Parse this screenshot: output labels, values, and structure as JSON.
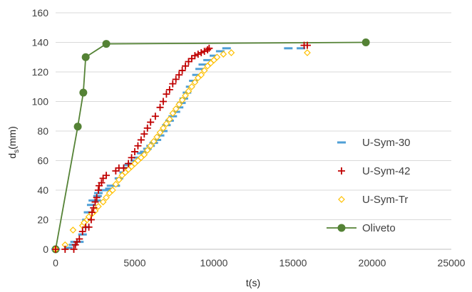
{
  "chart_data": {
    "type": "scatter",
    "xlabel": "t(s)",
    "ylabel_main": "d",
    "ylabel_sub": "s",
    "ylabel_unit": "(mm)",
    "xlim": [
      0,
      25000
    ],
    "ylim": [
      0,
      160
    ],
    "x_ticks": [
      0,
      5000,
      10000,
      15000,
      20000,
      25000
    ],
    "y_ticks": [
      0,
      20,
      40,
      60,
      80,
      100,
      120,
      140,
      160
    ],
    "grid": "horizontal",
    "legend_position": "right",
    "colors": {
      "usym30": "#4f9fd6",
      "usym42": "#c00000",
      "usymtr": "#ffc000",
      "oliveto": "#548235",
      "grid": "#d9d9d9",
      "axis": "#bfbfbf"
    },
    "series": [
      {
        "name": "U-Sym-30",
        "marker": "dash",
        "points": [
          [
            0,
            0
          ],
          [
            800,
            1
          ],
          [
            1100,
            3
          ],
          [
            1200,
            5
          ],
          [
            1500,
            5
          ],
          [
            1700,
            10
          ],
          [
            1900,
            15
          ],
          [
            1950,
            20
          ],
          [
            2050,
            25
          ],
          [
            2250,
            25
          ],
          [
            2250,
            30
          ],
          [
            2350,
            33
          ],
          [
            2600,
            33
          ],
          [
            2650,
            36
          ],
          [
            2700,
            38
          ],
          [
            3000,
            40
          ],
          [
            3200,
            40
          ],
          [
            3400,
            41
          ],
          [
            3500,
            43
          ],
          [
            3800,
            43
          ],
          [
            4000,
            48
          ],
          [
            4300,
            52
          ],
          [
            4500,
            55
          ],
          [
            4600,
            57
          ],
          [
            4800,
            58
          ],
          [
            5000,
            60
          ],
          [
            5200,
            62
          ],
          [
            5400,
            65
          ],
          [
            5600,
            66
          ],
          [
            5800,
            68
          ],
          [
            6000,
            70
          ],
          [
            6200,
            72
          ],
          [
            6400,
            74
          ],
          [
            6600,
            77
          ],
          [
            6800,
            80
          ],
          [
            7000,
            84
          ],
          [
            7200,
            87
          ],
          [
            7400,
            90
          ],
          [
            7600,
            93
          ],
          [
            7800,
            96
          ],
          [
            7950,
            99
          ],
          [
            8100,
            102
          ],
          [
            8300,
            106
          ],
          [
            8500,
            110
          ],
          [
            8700,
            114
          ],
          [
            8900,
            118
          ],
          [
            9100,
            122
          ],
          [
            9300,
            125
          ],
          [
            9600,
            128
          ],
          [
            10000,
            131
          ],
          [
            10400,
            134
          ],
          [
            10800,
            136
          ],
          [
            14700,
            136
          ],
          [
            15500,
            136
          ]
        ]
      },
      {
        "name": "U-Sym-42",
        "marker": "plus",
        "points": [
          [
            0,
            0
          ],
          [
            600,
            0
          ],
          [
            1150,
            0
          ],
          [
            1250,
            3
          ],
          [
            1350,
            5
          ],
          [
            1500,
            7
          ],
          [
            1700,
            12
          ],
          [
            1900,
            15
          ],
          [
            2100,
            15
          ],
          [
            2250,
            20
          ],
          [
            2300,
            25
          ],
          [
            2400,
            28
          ],
          [
            2500,
            32
          ],
          [
            2600,
            35
          ],
          [
            2700,
            40
          ],
          [
            2750,
            43
          ],
          [
            2900,
            45
          ],
          [
            3000,
            48
          ],
          [
            3200,
            50
          ],
          [
            3800,
            53
          ],
          [
            4000,
            55
          ],
          [
            4300,
            55
          ],
          [
            4600,
            58
          ],
          [
            4800,
            62
          ],
          [
            5000,
            66
          ],
          [
            5200,
            70
          ],
          [
            5400,
            74
          ],
          [
            5600,
            78
          ],
          [
            5800,
            82
          ],
          [
            6000,
            86
          ],
          [
            6300,
            90
          ],
          [
            6600,
            96
          ],
          [
            6800,
            100
          ],
          [
            7000,
            105
          ],
          [
            7200,
            108
          ],
          [
            7400,
            112
          ],
          [
            7600,
            115
          ],
          [
            7800,
            118
          ],
          [
            8000,
            121
          ],
          [
            8200,
            124
          ],
          [
            8400,
            127
          ],
          [
            8600,
            129
          ],
          [
            8800,
            131
          ],
          [
            9000,
            132
          ],
          [
            9200,
            133
          ],
          [
            9400,
            134
          ],
          [
            9600,
            135
          ],
          [
            9700,
            136
          ],
          [
            15700,
            138
          ],
          [
            15900,
            138
          ]
        ]
      },
      {
        "name": "U-Sym-Tr",
        "marker": "diamond",
        "points": [
          [
            0,
            0
          ],
          [
            600,
            3
          ],
          [
            1100,
            13
          ],
          [
            1700,
            16
          ],
          [
            1800,
            18
          ],
          [
            2000,
            20
          ],
          [
            2100,
            22
          ],
          [
            2300,
            24
          ],
          [
            2500,
            26
          ],
          [
            2700,
            29
          ],
          [
            3000,
            32
          ],
          [
            3200,
            35
          ],
          [
            3400,
            38
          ],
          [
            3600,
            40
          ],
          [
            3800,
            44
          ],
          [
            4000,
            47
          ],
          [
            4200,
            50
          ],
          [
            4400,
            52
          ],
          [
            4600,
            54
          ],
          [
            4800,
            56
          ],
          [
            5000,
            58
          ],
          [
            5200,
            60
          ],
          [
            5400,
            62
          ],
          [
            5600,
            64
          ],
          [
            5800,
            67
          ],
          [
            6000,
            70
          ],
          [
            6200,
            73
          ],
          [
            6400,
            76
          ],
          [
            6600,
            79
          ],
          [
            6800,
            82
          ],
          [
            7000,
            85
          ],
          [
            7200,
            88
          ],
          [
            7400,
            92
          ],
          [
            7600,
            95
          ],
          [
            7800,
            98
          ],
          [
            8000,
            101
          ],
          [
            8200,
            104
          ],
          [
            8400,
            107
          ],
          [
            8600,
            110
          ],
          [
            8800,
            113
          ],
          [
            9000,
            116
          ],
          [
            9200,
            118
          ],
          [
            9400,
            121
          ],
          [
            9600,
            124
          ],
          [
            9800,
            126
          ],
          [
            10000,
            128
          ],
          [
            10200,
            130
          ],
          [
            10600,
            132
          ],
          [
            11100,
            133
          ],
          [
            15900,
            133
          ]
        ]
      },
      {
        "name": "Oliveto",
        "marker": "circle-line",
        "points": [
          [
            0,
            0
          ],
          [
            1400,
            83
          ],
          [
            1750,
            106
          ],
          [
            1900,
            130
          ],
          [
            3200,
            139
          ],
          [
            19600,
            140
          ]
        ]
      }
    ]
  }
}
